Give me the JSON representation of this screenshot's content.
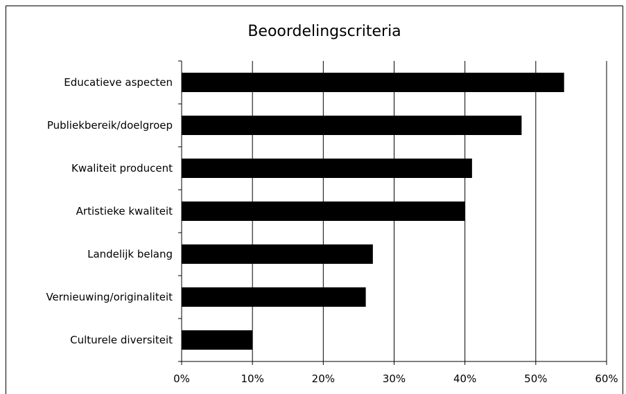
{
  "chart_data": {
    "type": "bar",
    "orientation": "horizontal",
    "title": "Beoordelingscriteria",
    "xlabel": "",
    "ylabel": "",
    "categories": [
      "Educatieve aspecten",
      "Publiekbereik/doelgroep",
      "Kwaliteit producent",
      "Artistieke kwaliteit",
      "Landelijk belang",
      "Vernieuwing/originaliteit",
      "Culturele diversiteit"
    ],
    "values": [
      54,
      48,
      41,
      40,
      27,
      26,
      10
    ],
    "xlim": [
      0,
      60
    ],
    "xticks": [
      0,
      10,
      20,
      30,
      40,
      50,
      60
    ],
    "tick_labels": [
      "0%",
      "10%",
      "20%",
      "30%",
      "40%",
      "50%",
      "60%"
    ],
    "unit": "%",
    "grid": "vertical",
    "legend": "none",
    "bar_color": "#000000"
  }
}
